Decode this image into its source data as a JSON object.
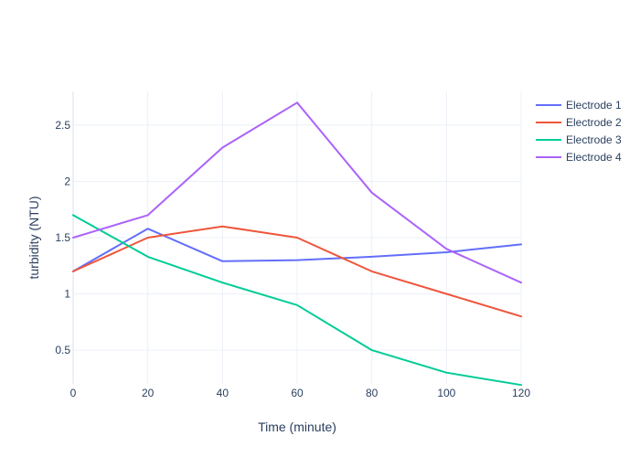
{
  "chart_data": {
    "type": "line",
    "title": "",
    "xlabel": "Time (minute)",
    "ylabel": "turbidity (NTU)",
    "x": [
      0,
      20,
      40,
      60,
      80,
      100,
      120
    ],
    "xlim": [
      0,
      120
    ],
    "ylim": [
      0.2,
      2.8
    ],
    "xticks": [
      0,
      20,
      40,
      60,
      80,
      100,
      120
    ],
    "yticks": [
      0.5,
      1,
      1.5,
      2,
      2.5
    ],
    "grid": true,
    "legend_position": "top-right",
    "series": [
      {
        "name": "Electrode 1",
        "color": "#636efa",
        "values": [
          1.2,
          1.58,
          1.29,
          1.3,
          1.33,
          1.37,
          1.44
        ]
      },
      {
        "name": "Electrode 2",
        "color": "#ef553b",
        "values": [
          1.2,
          1.5,
          1.6,
          1.5,
          1.2,
          1.0,
          0.8
        ]
      },
      {
        "name": "Electrode 3",
        "color": "#00cc96",
        "values": [
          1.7,
          1.33,
          1.1,
          0.9,
          0.5,
          0.3,
          0.19
        ]
      },
      {
        "name": "Electrode 4",
        "color": "#ab63fa",
        "values": [
          1.5,
          1.7,
          2.3,
          2.7,
          1.9,
          1.4,
          1.1
        ]
      }
    ]
  }
}
